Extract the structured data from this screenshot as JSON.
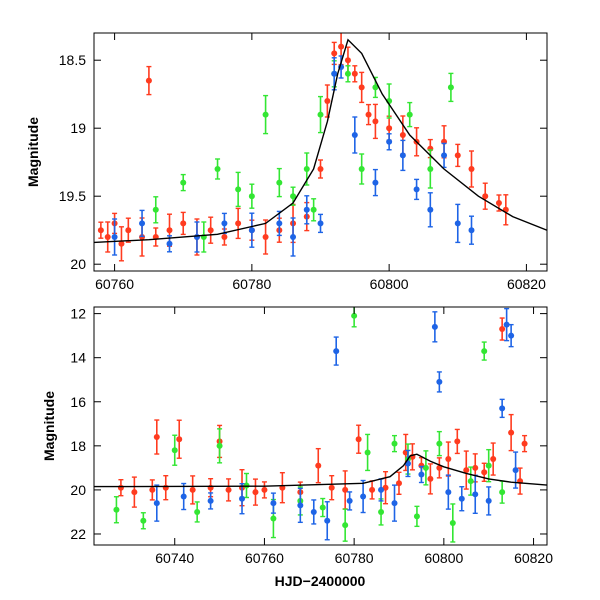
{
  "chart_data": [
    {
      "type": "scatter",
      "panel": "top",
      "title": "",
      "xlabel": "",
      "ylabel": "Magnitude",
      "xlim": [
        60757,
        60823
      ],
      "ylim": [
        20.05,
        18.3
      ],
      "y_inverted": true,
      "xticks": [
        60760,
        60780,
        60800,
        60820
      ],
      "xtick_labels": [
        "60760",
        "60780",
        "60800",
        "60820"
      ],
      "yticks": [
        18.5,
        19,
        19.5,
        20
      ],
      "ytick_labels": [
        "18.5",
        "19",
        "19.5",
        "20"
      ],
      "grid": false,
      "legend": "none",
      "series": [
        {
          "color": "#ff3b1f",
          "band": "red",
          "x": [
            60758.0,
            60759.0,
            60760.0,
            60761.0,
            60762.0,
            60764.0,
            60765.0,
            60766.0,
            60768.0,
            60770.0,
            60772.0,
            60774.0,
            60776.0,
            60778.0,
            60780.0,
            60782.0,
            60784.0,
            60786.0,
            60788.0,
            60790.0,
            60791.0,
            60792.0,
            60793.0,
            60794.0,
            60795.0,
            60796.0,
            60797.0,
            60798.0,
            60800.0,
            60802.0,
            60804.0,
            60806.0,
            60808.0,
            60810.0,
            60812.0,
            60814.0,
            60816.0,
            60817.0
          ],
          "y": [
            19.75,
            19.8,
            19.7,
            19.85,
            19.75,
            19.8,
            18.65,
            19.8,
            19.75,
            19.7,
            19.8,
            19.75,
            19.8,
            19.7,
            19.75,
            19.8,
            19.75,
            19.7,
            19.65,
            19.3,
            18.8,
            18.45,
            18.4,
            18.5,
            18.6,
            18.7,
            18.9,
            18.95,
            19.0,
            19.05,
            19.1,
            19.15,
            19.1,
            19.2,
            19.3,
            19.5,
            19.55,
            19.6
          ]
        },
        {
          "color": "#33e633",
          "band": "green",
          "x": [
            60766.0,
            60770.0,
            60773.0,
            60775.0,
            60778.0,
            60780.0,
            60782.0,
            60784.0,
            60786.0,
            60788.0,
            60789.0,
            60790.0,
            60792.0,
            60794.0,
            60796.0,
            60798.0,
            60800.0,
            60803.0,
            60806.0,
            60809.0
          ],
          "y": [
            19.6,
            19.4,
            19.8,
            19.3,
            19.45,
            19.5,
            18.9,
            19.4,
            19.5,
            19.3,
            19.6,
            18.9,
            18.6,
            18.6,
            19.3,
            18.7,
            18.8,
            18.9,
            19.3,
            18.7
          ]
        },
        {
          "color": "#1e64e6",
          "band": "blue",
          "x": [
            60760.0,
            60764.0,
            60768.0,
            60772.0,
            60776.0,
            60780.0,
            60784.0,
            60786.0,
            60788.0,
            60790.0,
            60792.0,
            60793.0,
            60795.0,
            60798.0,
            60800.0,
            60802.0,
            60804.0,
            60806.0,
            60808.0,
            60810.0,
            60812.0
          ],
          "y": [
            19.8,
            19.7,
            19.85,
            19.8,
            19.7,
            19.75,
            19.7,
            19.8,
            19.6,
            19.7,
            18.6,
            18.55,
            19.05,
            19.4,
            19.1,
            19.2,
            19.45,
            19.6,
            19.2,
            19.7,
            19.75
          ]
        }
      ],
      "model_curve": {
        "color": "#000000",
        "x": [
          60757.0,
          60765.0,
          60775.0,
          60782.0,
          60786.0,
          60789.0,
          60791.0,
          60792.5,
          60794.0,
          60796.0,
          60799.0,
          60803.0,
          60808.0,
          60813.0,
          60818.0,
          60823.0
        ],
        "y": [
          19.84,
          19.82,
          19.78,
          19.7,
          19.55,
          19.3,
          18.95,
          18.6,
          18.35,
          18.45,
          18.75,
          19.05,
          19.3,
          19.5,
          19.65,
          19.75
        ]
      }
    },
    {
      "type": "scatter",
      "panel": "bottom",
      "title": "",
      "xlabel": "HJD−2400000",
      "ylabel": "Magnitude",
      "xlim": [
        60722,
        60823
      ],
      "ylim": [
        22.5,
        11.7
      ],
      "y_inverted": true,
      "xticks": [
        60740,
        60760,
        60780,
        60800,
        60820
      ],
      "xtick_labels": [
        "60740",
        "60760",
        "60780",
        "60800",
        "60820"
      ],
      "yticks": [
        12,
        14,
        16,
        18,
        20,
        22
      ],
      "ytick_labels": [
        "12",
        "14",
        "16",
        "18",
        "20",
        "22"
      ],
      "grid": false,
      "legend": "none",
      "series": [
        {
          "color": "#ff3b1f",
          "band": "red",
          "x": [
            60728.0,
            60731.0,
            60735.0,
            60736.0,
            60738.0,
            60741.0,
            60744.0,
            60748.0,
            60750.0,
            60752.0,
            60755.0,
            60758.0,
            60760.0,
            60764.0,
            60768.0,
            60772.0,
            60775.0,
            60778.0,
            60781.0,
            60784.0,
            60787.0,
            60790.0,
            60791.5,
            60793.0,
            60795.0,
            60797.0,
            60799.0,
            60801.0,
            60803.0,
            60805.0,
            60807.0,
            60809.0,
            60811.0,
            60813.0,
            60815.0,
            60817.0,
            60818.0
          ],
          "y": [
            19.9,
            20.1,
            20.0,
            17.6,
            19.9,
            17.7,
            20.0,
            19.9,
            17.8,
            20.0,
            19.9,
            20.1,
            20.0,
            19.9,
            20.1,
            18.9,
            19.9,
            20.0,
            17.7,
            20.0,
            19.9,
            19.7,
            18.3,
            18.5,
            18.9,
            19.5,
            19.0,
            18.6,
            17.8,
            19.1,
            19.0,
            19.2,
            18.6,
            12.7,
            17.4,
            19.6,
            17.9
          ]
        },
        {
          "color": "#33e633",
          "band": "green",
          "x": [
            60727.0,
            60733.0,
            60740.0,
            60745.0,
            60750.0,
            60756.0,
            60762.0,
            60768.0,
            60773.0,
            60778.0,
            60780.0,
            60783.0,
            60786.0,
            60789.0,
            60792.0,
            60794.0,
            60796.0,
            60799.0,
            60802.0,
            60806.0,
            60809.0,
            60810.0,
            60813.0
          ],
          "y": [
            20.9,
            21.4,
            18.2,
            21.0,
            18.0,
            19.8,
            21.3,
            20.5,
            20.8,
            21.6,
            12.1,
            18.3,
            21.0,
            17.9,
            18.6,
            21.2,
            19.0,
            17.9,
            21.5,
            19.6,
            13.7,
            18.9,
            20.1
          ]
        },
        {
          "color": "#1e64e6",
          "band": "blue",
          "x": [
            60736.0,
            60742.0,
            60748.0,
            60755.0,
            60762.0,
            60768.0,
            60771.0,
            60774.0,
            60776.0,
            60779.0,
            60782.0,
            60786.0,
            60789.0,
            60792.0,
            60795.0,
            60798.0,
            60799.0,
            60801.0,
            60804.0,
            60807.0,
            60810.0,
            60813.0,
            60814.0,
            60815.0,
            60816.0
          ],
          "y": [
            20.6,
            20.3,
            20.5,
            20.4,
            20.6,
            20.7,
            21.0,
            21.4,
            13.7,
            20.5,
            20.3,
            20.0,
            20.6,
            18.8,
            19.3,
            12.6,
            15.1,
            20.1,
            20.4,
            20.2,
            20.5,
            16.3,
            12.5,
            13.0,
            19.1
          ]
        }
      ],
      "model_curve": {
        "color": "#000000",
        "x": [
          60722.0,
          60760.0,
          60782.0,
          60788.0,
          60791.0,
          60792.5,
          60794.0,
          60797.0,
          60800.0,
          60805.0,
          60810.0,
          60815.0,
          60823.0
        ],
        "y": [
          19.85,
          19.83,
          19.7,
          19.4,
          18.9,
          18.45,
          18.38,
          18.7,
          18.95,
          19.25,
          19.5,
          19.65,
          19.78
        ]
      }
    }
  ]
}
